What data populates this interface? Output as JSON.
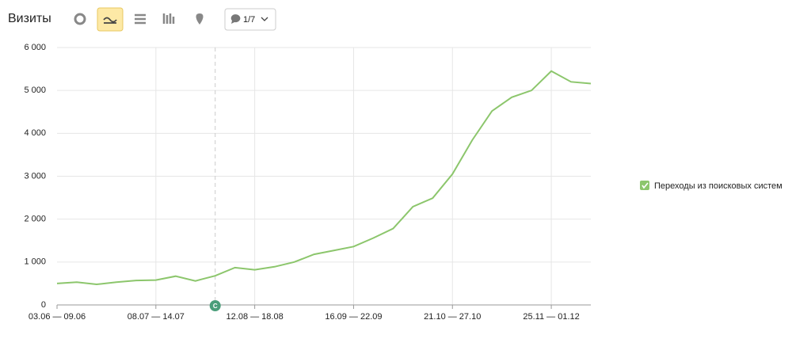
{
  "header": {
    "title": "Визиты",
    "counter": "1/7"
  },
  "chart_data": {
    "type": "line",
    "categories": [
      "03.06 — 09.06",
      null,
      null,
      null,
      null,
      "08.07 — 14.07",
      null,
      null,
      null,
      null,
      "12.08 — 18.08",
      null,
      null,
      null,
      null,
      "16.09 — 22.09",
      null,
      null,
      null,
      null,
      "21.10 — 27.10",
      null,
      null,
      null,
      null,
      "25.11 — 01.12",
      null,
      null
    ],
    "series": [
      {
        "name": "Переходы из поисковых систем",
        "color": "#8cc66c",
        "values": [
          500,
          530,
          480,
          530,
          570,
          580,
          670,
          560,
          680,
          870,
          820,
          890,
          1000,
          1180,
          1270,
          1360,
          1560,
          1780,
          2290,
          2490,
          3050,
          3840,
          4520,
          4840,
          5000,
          5450,
          5200,
          5160
        ]
      }
    ],
    "ylim": [
      0,
      6000
    ],
    "yticks": [
      0,
      {
        "value": 1000,
        "label": "1 000"
      },
      {
        "value": 2000,
        "label": "2 000"
      },
      {
        "value": 3000,
        "label": "3 000"
      },
      {
        "value": 4000,
        "label": "4 000"
      },
      {
        "value": 5000,
        "label": "5 000"
      },
      {
        "value": 6000,
        "label": "6 000"
      }
    ],
    "grid": true,
    "annotation": "С"
  }
}
